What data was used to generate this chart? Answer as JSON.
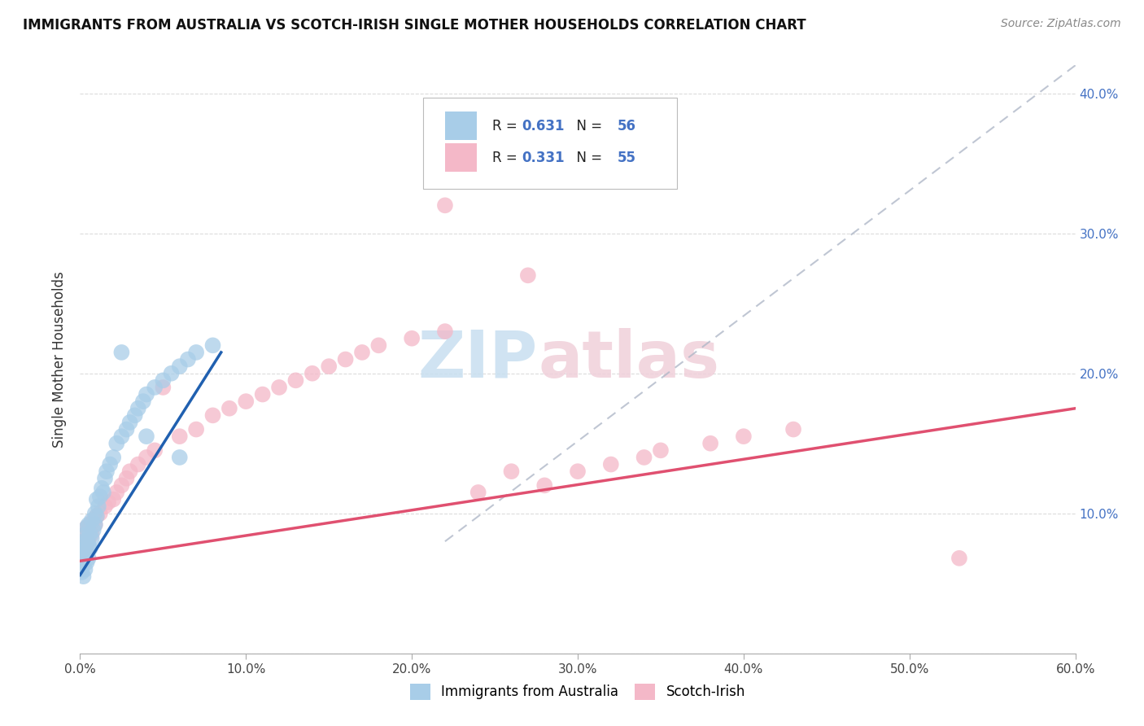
{
  "title": "IMMIGRANTS FROM AUSTRALIA VS SCOTCH-IRISH SINGLE MOTHER HOUSEHOLDS CORRELATION CHART",
  "source": "Source: ZipAtlas.com",
  "ylabel": "Single Mother Households",
  "xlim": [
    0.0,
    0.6
  ],
  "ylim": [
    0.0,
    0.42
  ],
  "xtick_vals": [
    0.0,
    0.1,
    0.2,
    0.3,
    0.4,
    0.5,
    0.6
  ],
  "ytick_vals": [
    0.0,
    0.1,
    0.2,
    0.3,
    0.4
  ],
  "color_blue": "#a8cde8",
  "color_pink": "#f4b8c8",
  "color_blue_line": "#2060b0",
  "color_pink_line": "#e05070",
  "color_diag": "#b0b8c8",
  "watermark_zip_color": "#c8dff0",
  "watermark_atlas_color": "#f0d0da",
  "aus_line_x0": 0.0,
  "aus_line_x1": 0.085,
  "aus_line_y0": 0.056,
  "aus_line_y1": 0.215,
  "scotch_line_x0": 0.0,
  "scotch_line_x1": 0.6,
  "scotch_line_y0": 0.066,
  "scotch_line_y1": 0.175,
  "aus_x": [
    0.0005,
    0.001,
    0.001,
    0.001,
    0.001,
    0.0015,
    0.002,
    0.002,
    0.002,
    0.002,
    0.003,
    0.003,
    0.003,
    0.003,
    0.004,
    0.004,
    0.004,
    0.004,
    0.005,
    0.005,
    0.005,
    0.006,
    0.006,
    0.007,
    0.007,
    0.008,
    0.009,
    0.009,
    0.01,
    0.01,
    0.011,
    0.012,
    0.013,
    0.014,
    0.015,
    0.016,
    0.018,
    0.02,
    0.022,
    0.025,
    0.028,
    0.03,
    0.033,
    0.035,
    0.038,
    0.04,
    0.045,
    0.05,
    0.055,
    0.06,
    0.065,
    0.07,
    0.08,
    0.025,
    0.04,
    0.06
  ],
  "aus_y": [
    0.062,
    0.058,
    0.065,
    0.07,
    0.06,
    0.068,
    0.055,
    0.072,
    0.065,
    0.08,
    0.06,
    0.07,
    0.075,
    0.085,
    0.065,
    0.072,
    0.08,
    0.09,
    0.068,
    0.078,
    0.092,
    0.075,
    0.085,
    0.082,
    0.095,
    0.088,
    0.092,
    0.1,
    0.098,
    0.11,
    0.105,
    0.112,
    0.118,
    0.115,
    0.125,
    0.13,
    0.135,
    0.14,
    0.15,
    0.155,
    0.16,
    0.165,
    0.17,
    0.175,
    0.18,
    0.185,
    0.19,
    0.195,
    0.2,
    0.205,
    0.21,
    0.215,
    0.22,
    0.215,
    0.155,
    0.14
  ],
  "aus_outlier_x": [
    0.02
  ],
  "aus_outlier_y": [
    0.215
  ],
  "scotch_x": [
    0.001,
    0.001,
    0.002,
    0.002,
    0.003,
    0.003,
    0.004,
    0.004,
    0.005,
    0.005,
    0.006,
    0.007,
    0.008,
    0.009,
    0.01,
    0.012,
    0.015,
    0.017,
    0.02,
    0.022,
    0.025,
    0.028,
    0.03,
    0.035,
    0.04,
    0.045,
    0.05,
    0.06,
    0.07,
    0.08,
    0.09,
    0.1,
    0.11,
    0.12,
    0.13,
    0.14,
    0.15,
    0.16,
    0.17,
    0.18,
    0.2,
    0.22,
    0.24,
    0.26,
    0.27,
    0.28,
    0.3,
    0.32,
    0.34,
    0.35,
    0.38,
    0.4,
    0.43,
    0.53,
    0.22
  ],
  "scotch_y": [
    0.07,
    0.075,
    0.068,
    0.08,
    0.072,
    0.085,
    0.078,
    0.09,
    0.082,
    0.088,
    0.092,
    0.085,
    0.095,
    0.092,
    0.098,
    0.1,
    0.105,
    0.108,
    0.11,
    0.115,
    0.12,
    0.125,
    0.13,
    0.135,
    0.14,
    0.145,
    0.19,
    0.155,
    0.16,
    0.17,
    0.175,
    0.18,
    0.185,
    0.19,
    0.195,
    0.2,
    0.205,
    0.21,
    0.215,
    0.22,
    0.225,
    0.23,
    0.115,
    0.13,
    0.27,
    0.12,
    0.13,
    0.135,
    0.14,
    0.145,
    0.15,
    0.155,
    0.16,
    0.068,
    0.32
  ]
}
